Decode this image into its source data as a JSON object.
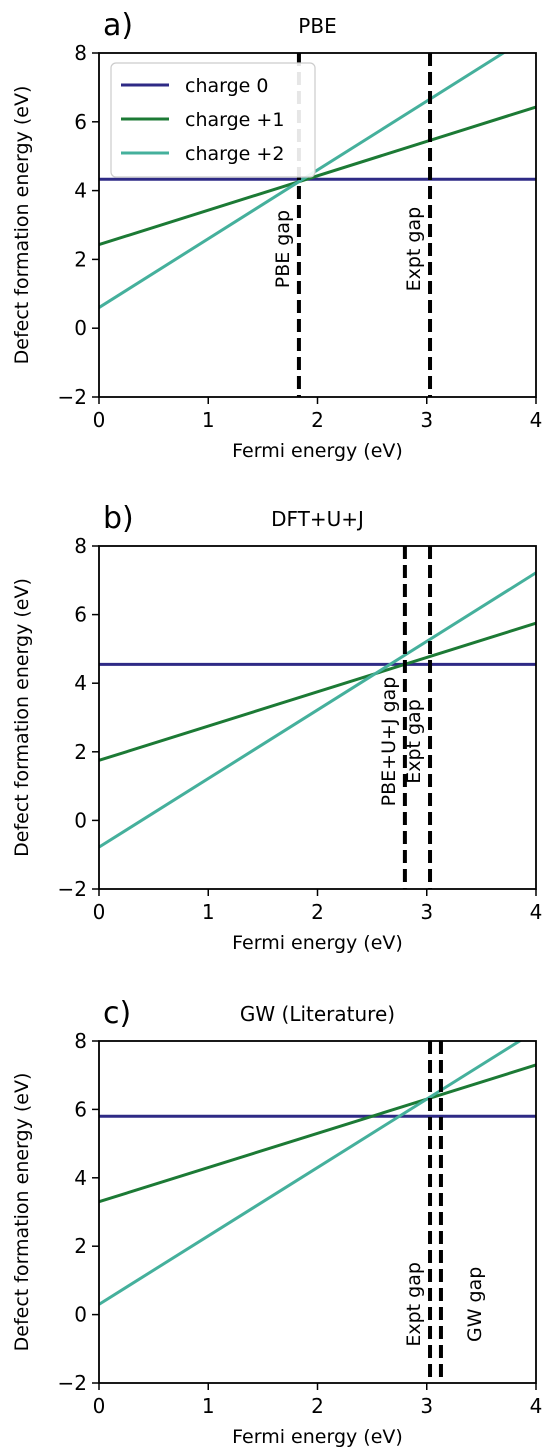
{
  "chart_data": [
    {
      "type": "line",
      "panel_label": "a)",
      "title": "PBE",
      "xlabel": "Fermi energy (eV)",
      "ylabel": "Defect formation energy (eV)",
      "xlim": [
        0,
        4
      ],
      "ylim": [
        -2,
        8
      ],
      "xticks": [
        0,
        1,
        2,
        3,
        4
      ],
      "yticks": [
        -2,
        0,
        2,
        4,
        6,
        8
      ],
      "legend": "top-left",
      "series": [
        {
          "name": "charge 0",
          "color": "#2e2a85",
          "x": [
            0,
            4
          ],
          "y": [
            4.33,
            4.33
          ]
        },
        {
          "name": "charge +1",
          "color": "#1c7a35",
          "x": [
            0,
            4
          ],
          "y": [
            2.43,
            6.43
          ]
        },
        {
          "name": "charge +2",
          "color": "#45b09c",
          "x": [
            0,
            4
          ],
          "y": [
            0.6,
            8.6
          ]
        }
      ],
      "vlines": [
        {
          "x": 1.83,
          "label": "PBE gap"
        },
        {
          "x": 3.03,
          "label": "Expt gap"
        }
      ]
    },
    {
      "type": "line",
      "panel_label": "b)",
      "title": "DFT+U+J",
      "xlabel": "Fermi energy (eV)",
      "ylabel": "Defect formation energy (eV)",
      "xlim": [
        0,
        4
      ],
      "ylim": [
        -2,
        8
      ],
      "xticks": [
        0,
        1,
        2,
        3,
        4
      ],
      "yticks": [
        -2,
        0,
        2,
        4,
        6,
        8
      ],
      "series": [
        {
          "name": "charge 0",
          "color": "#2e2a85",
          "x": [
            0,
            4
          ],
          "y": [
            4.55,
            4.55
          ]
        },
        {
          "name": "charge +1",
          "color": "#1c7a35",
          "x": [
            0,
            4
          ],
          "y": [
            1.75,
            5.75
          ]
        },
        {
          "name": "charge +2",
          "color": "#45b09c",
          "x": [
            0,
            4
          ],
          "y": [
            -0.78,
            7.22
          ]
        }
      ],
      "vlines": [
        {
          "x": 2.8,
          "label": "PBE+U+J gap"
        },
        {
          "x": 3.03,
          "label": "Expt gap"
        }
      ]
    },
    {
      "type": "line",
      "panel_label": "c)",
      "title": "GW (Literature)",
      "xlabel": "Fermi energy (eV)",
      "ylabel": "Defect formation energy (eV)",
      "xlim": [
        0,
        4
      ],
      "ylim": [
        -2,
        8
      ],
      "xticks": [
        0,
        1,
        2,
        3,
        4
      ],
      "yticks": [
        -2,
        0,
        2,
        4,
        6,
        8
      ],
      "series": [
        {
          "name": "charge 0",
          "color": "#2e2a85",
          "x": [
            0,
            4
          ],
          "y": [
            5.8,
            5.8
          ]
        },
        {
          "name": "charge +1",
          "color": "#1c7a35",
          "x": [
            0,
            4
          ],
          "y": [
            3.3,
            7.3
          ]
        },
        {
          "name": "charge +2",
          "color": "#45b09c",
          "x": [
            0,
            4
          ],
          "y": [
            0.3,
            8.3
          ]
        }
      ],
      "vlines": [
        {
          "x": 3.03,
          "label": "Expt gap"
        },
        {
          "x": 3.13,
          "label": "GW gap"
        }
      ]
    }
  ]
}
